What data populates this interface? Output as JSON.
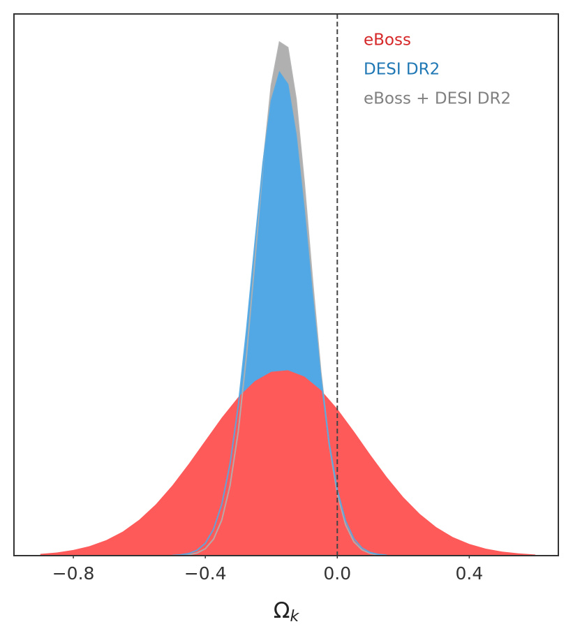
{
  "chart_data": {
    "type": "density",
    "xlabel": "Ω",
    "xlabel_sub": "k",
    "xlim": [
      -0.98,
      0.67
    ],
    "ylim": [
      0,
      1
    ],
    "xticks": [
      {
        "value": -0.8,
        "label": "−0.8"
      },
      {
        "value": -0.4,
        "label": "−0.4"
      },
      {
        "value": 0,
        "label": "0.0"
      },
      {
        "value": 0.4,
        "label": "0.4"
      }
    ],
    "vline": 0,
    "series": [
      {
        "name": "eBoss + DESI DR2",
        "color": "#b0b0b0",
        "legend_color": "#808080",
        "x": [
          -0.5,
          -0.475,
          -0.45,
          -0.425,
          -0.4,
          -0.375,
          -0.35,
          -0.325,
          -0.3,
          -0.275,
          -0.25,
          -0.225,
          -0.2,
          -0.175,
          -0.15,
          -0.125,
          -0.1,
          -0.075,
          -0.05,
          -0.025,
          0,
          0.025,
          0.05,
          0.075,
          0.1,
          0.125,
          0.15
        ],
        "values": [
          0.0001,
          0.0005,
          0.0017,
          0.0049,
          0.0128,
          0.0305,
          0.0659,
          0.1292,
          0.23,
          0.371,
          0.543,
          0.721,
          0.868,
          0.948,
          0.938,
          0.843,
          0.687,
          0.507,
          0.34,
          0.207,
          0.114,
          0.0569,
          0.0258,
          0.0106,
          0.004,
          0.0013,
          0.0004
        ]
      },
      {
        "name": "DESI DR2",
        "color": "#52a8e4",
        "legend_color": "#1f77b4",
        "x": [
          -0.5,
          -0.475,
          -0.45,
          -0.425,
          -0.4,
          -0.375,
          -0.35,
          -0.325,
          -0.3,
          -0.275,
          -0.25,
          -0.225,
          -0.2,
          -0.175,
          -0.15,
          -0.125,
          -0.1,
          -0.075,
          -0.05,
          -0.025,
          0,
          0.025,
          0.05,
          0.075,
          0.1,
          0.125,
          0.15
        ],
        "values": [
          0.0005,
          0.0014,
          0.0039,
          0.0099,
          0.023,
          0.0488,
          0.095,
          0.1695,
          0.2773,
          0.4168,
          0.574,
          0.725,
          0.84,
          0.892,
          0.87,
          0.777,
          0.637,
          0.479,
          0.33,
          0.209,
          0.121,
          0.0644,
          0.0314,
          0.014,
          0.0058,
          0.0022,
          0.0008
        ]
      },
      {
        "name": "eBoss",
        "color": "#ff5a5a",
        "legend_color": "#d62728",
        "x": [
          -0.9,
          -0.85,
          -0.8,
          -0.75,
          -0.7,
          -0.65,
          -0.6,
          -0.55,
          -0.5,
          -0.45,
          -0.4,
          -0.35,
          -0.3,
          -0.25,
          -0.2,
          -0.15,
          -0.1,
          -0.05,
          0,
          0.05,
          0.1,
          0.15,
          0.2,
          0.25,
          0.3,
          0.35,
          0.4,
          0.45,
          0.5,
          0.55,
          0.6
        ],
        "values": [
          0.0032,
          0.0058,
          0.0104,
          0.0176,
          0.0286,
          0.0445,
          0.0664,
          0.0947,
          0.1295,
          0.1695,
          0.2124,
          0.2548,
          0.2929,
          0.3222,
          0.3394,
          0.3423,
          0.3307,
          0.3059,
          0.2709,
          0.2298,
          0.1864,
          0.145,
          0.1079,
          0.077,
          0.0525,
          0.0343,
          0.0215,
          0.0129,
          0.0074,
          0.0041,
          0.0021
        ]
      }
    ],
    "legend_order": [
      2,
      1,
      0
    ]
  }
}
